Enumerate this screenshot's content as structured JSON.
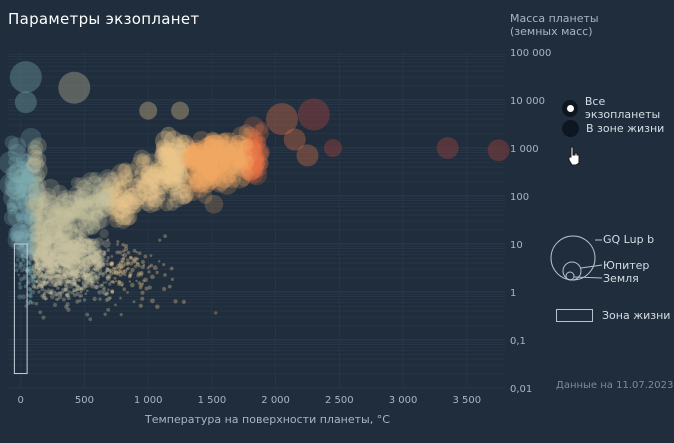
{
  "title": "Параметры экзопланет",
  "legend": {
    "all_label": "Все экзопланеты",
    "habitable_label": "В зоне жизни",
    "size_labels": [
      "GQ Lup b",
      "Юпитер",
      "Земля"
    ],
    "zone_label": "Зона жизни"
  },
  "date_note": "Данные на 11.07.2023",
  "icons": {
    "cursor": "hand-pointer-icon"
  },
  "colors": {
    "background": "#1f2d3d",
    "cold": "#7fb3b8",
    "warm": "#f2c98a",
    "hot": "#f08a4b",
    "hottest": "#c8453a"
  },
  "chart_data": {
    "type": "scatter",
    "title": "Параметры экзопланет",
    "xlabel": "Температура на поверхности планеты, °C",
    "ylabel": "Масса планеты (земных масс)",
    "x_ticks": [
      "0",
      "500",
      "1 000",
      "1 500",
      "2 000",
      "2 500",
      "3 000",
      "3 500"
    ],
    "x_tick_values": [
      0,
      500,
      1000,
      1500,
      2000,
      2500,
      3000,
      3500
    ],
    "y_ticks": [
      "100 000",
      "10 000",
      "1 000",
      "100",
      "10",
      "1",
      "0,1",
      "0,01"
    ],
    "y_tick_values": [
      100000,
      10000,
      1000,
      100,
      10,
      1,
      0.1,
      0.01
    ],
    "y_scale": "log",
    "xlim": [
      -100,
      3800
    ],
    "ylim": [
      0.01,
      100000
    ],
    "legend_position": "right",
    "habitable_zone": {
      "x": [
        -50,
        50
      ],
      "y": [
        0.02,
        10
      ]
    },
    "notable_points": [
      {
        "x": 40,
        "y": 30000,
        "size": "large"
      },
      {
        "x": 420,
        "y": 18000,
        "size": "large"
      },
      {
        "x": 40,
        "y": 9000,
        "size": "medium"
      },
      {
        "x": 1000,
        "y": 6000,
        "size": "small"
      },
      {
        "x": 1250,
        "y": 6000,
        "size": "small"
      },
      {
        "x": 3350,
        "y": 1000,
        "size": "medium"
      },
      {
        "x": 3750,
        "y": 900,
        "size": "medium"
      },
      {
        "x": 2050,
        "y": 4000,
        "size": "large"
      },
      {
        "x": 2300,
        "y": 5000,
        "size": "large"
      },
      {
        "x": 2250,
        "y": 700,
        "size": "medium"
      },
      {
        "x": 2150,
        "y": 1500,
        "size": "medium"
      },
      {
        "x": 2450,
        "y": 1000,
        "size": "small"
      }
    ],
    "density_note": "dense cloud of planets from 0 to 1 900 °C, masses 0.3 – 3 000 Earth masses"
  }
}
